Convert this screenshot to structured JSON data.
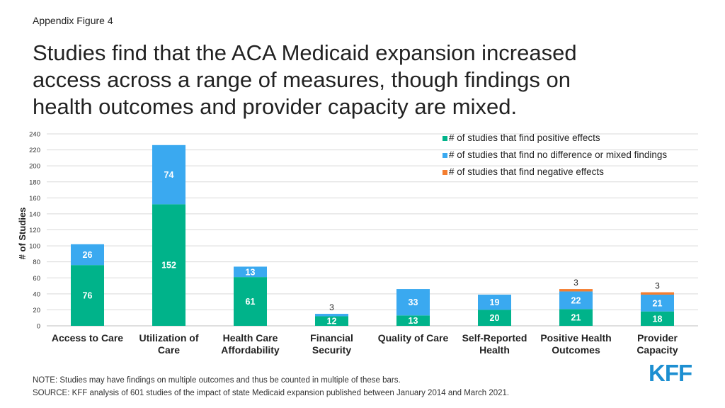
{
  "header": {
    "appendix_label": "Appendix Figure 4",
    "title_lines": [
      "Studies find that the ACA Medicaid expansion increased",
      "access across a range of measures, though findings on",
      "health outcomes and provider capacity are mixed."
    ]
  },
  "chart_data": {
    "type": "bar",
    "stacked": true,
    "title": "",
    "xlabel": "",
    "ylabel": "# of Studies",
    "ylim": [
      0,
      240
    ],
    "yticks": [
      0,
      20,
      40,
      60,
      80,
      100,
      120,
      140,
      160,
      180,
      200,
      220,
      240
    ],
    "grid": true,
    "legend_position": "top-right",
    "categories": [
      [
        "Access to Care"
      ],
      [
        "Utilization of",
        "Care"
      ],
      [
        "Health Care",
        "Affordability"
      ],
      [
        "Financial",
        "Security"
      ],
      [
        "Quality of Care"
      ],
      [
        "Self-Reported",
        "Health"
      ],
      [
        "Positive Health",
        "Outcomes"
      ],
      [
        "Provider",
        "Capacity"
      ]
    ],
    "series": [
      {
        "name": "# of studies that find positive effects",
        "color": "#00b38a",
        "values": [
          76,
          152,
          61,
          12,
          13,
          20,
          21,
          18
        ]
      },
      {
        "name": "# of studies that find no difference or mixed findings",
        "color": "#3aa9f0",
        "values": [
          26,
          74,
          13,
          3,
          33,
          19,
          22,
          21
        ]
      },
      {
        "name": "# of studies that find negative effects",
        "color": "#f47e30",
        "values": [
          0,
          0,
          0,
          0,
          0,
          0,
          3,
          3
        ]
      }
    ],
    "data_labels": [
      [
        "76",
        "26",
        ""
      ],
      [
        "152",
        "74",
        ""
      ],
      [
        "61",
        "13",
        ""
      ],
      [
        "12",
        "3",
        ""
      ],
      [
        "13",
        "33",
        ""
      ],
      [
        "20",
        "19",
        ""
      ],
      [
        "21",
        "22",
        "3"
      ],
      [
        "18",
        "21",
        "3"
      ]
    ]
  },
  "footer": {
    "note": "NOTE: Studies may have findings on multiple outcomes and thus be counted in multiple of these bars.",
    "source": "SOURCE: KFF analysis of 601 studies of the impact of state Medicaid expansion published between January 2014 and March 2021.",
    "logo_text": "KFF"
  }
}
